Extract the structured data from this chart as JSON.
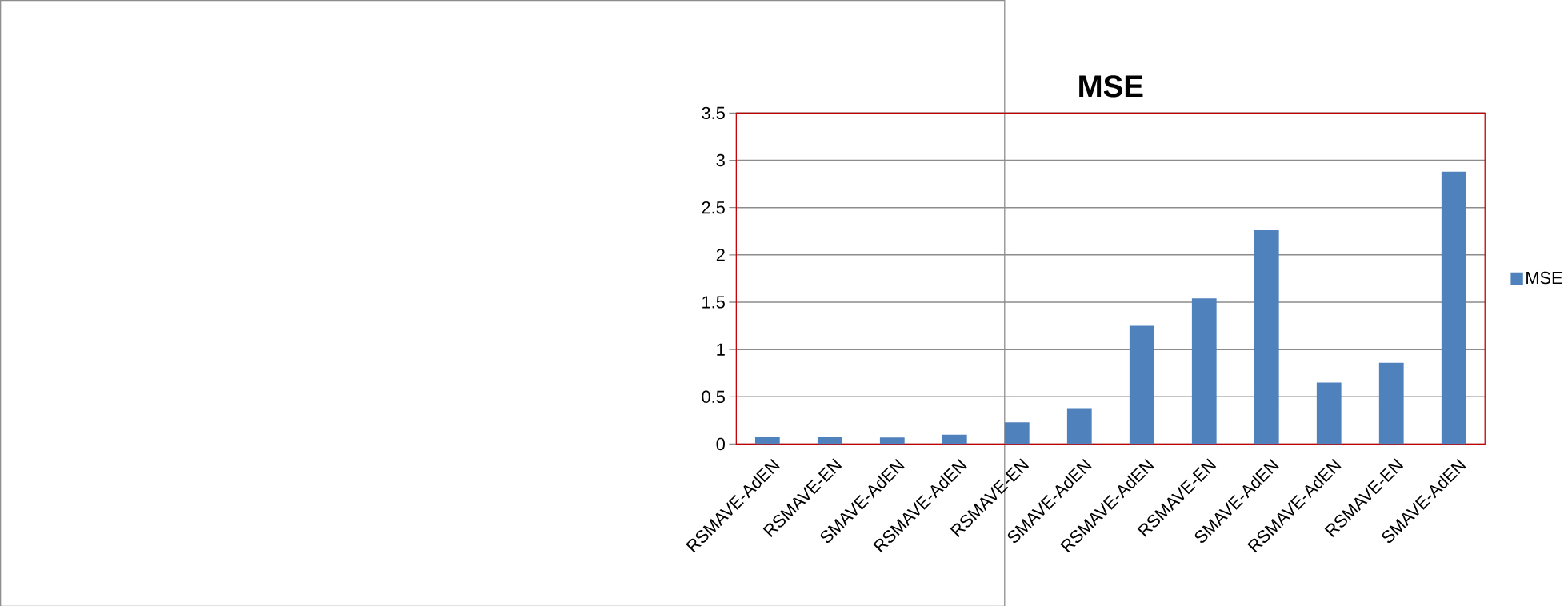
{
  "chart_data": {
    "type": "bar",
    "title": "MSE",
    "categories": [
      "RSMAVE-AdEN",
      "RSMAVE-EN",
      "SMAVE-AdEN",
      "RSMAVE-AdEN",
      "RSMAVE-EN",
      "SMAVE-AdEN",
      "RSMAVE-AdEN",
      "RSMAVE-EN",
      "SMAVE-AdEN",
      "RSMAVE-AdEN",
      "RSMAVE-EN",
      "SMAVE-AdEN"
    ],
    "series": [
      {
        "name": "MSE",
        "color": "#4f81bd",
        "values": [
          0.08,
          0.08,
          0.07,
          0.1,
          0.23,
          0.38,
          1.25,
          1.54,
          2.26,
          0.65,
          0.86,
          2.88
        ]
      }
    ],
    "ylim": [
      0,
      3.5
    ],
    "yticks": [
      0,
      0.5,
      1,
      1.5,
      2,
      2.5,
      3,
      3.5
    ],
    "grid": "y",
    "legend": "right"
  }
}
